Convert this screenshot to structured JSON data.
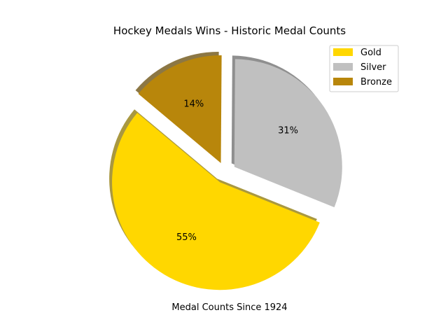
{
  "chart_data": {
    "type": "pie",
    "title": "Hockey Medals Wins - Historic Medal Counts",
    "xlabel": "Medal Counts Since 1924",
    "ylabel": "",
    "categories": [
      "Gold",
      "Silver",
      "Bronze"
    ],
    "values": [
      55,
      31,
      14
    ],
    "labels": [
      "55%",
      "31%",
      "14%"
    ],
    "colors": [
      "#FFD700",
      "#C0C0C0",
      "#B8860B"
    ],
    "explode": [
      0.1,
      0.1,
      0.1
    ],
    "start_angle_deg": 140,
    "shadow": true,
    "legend": {
      "placement": "top-right",
      "entries": [
        "Gold",
        "Silver",
        "Bronze"
      ]
    }
  }
}
